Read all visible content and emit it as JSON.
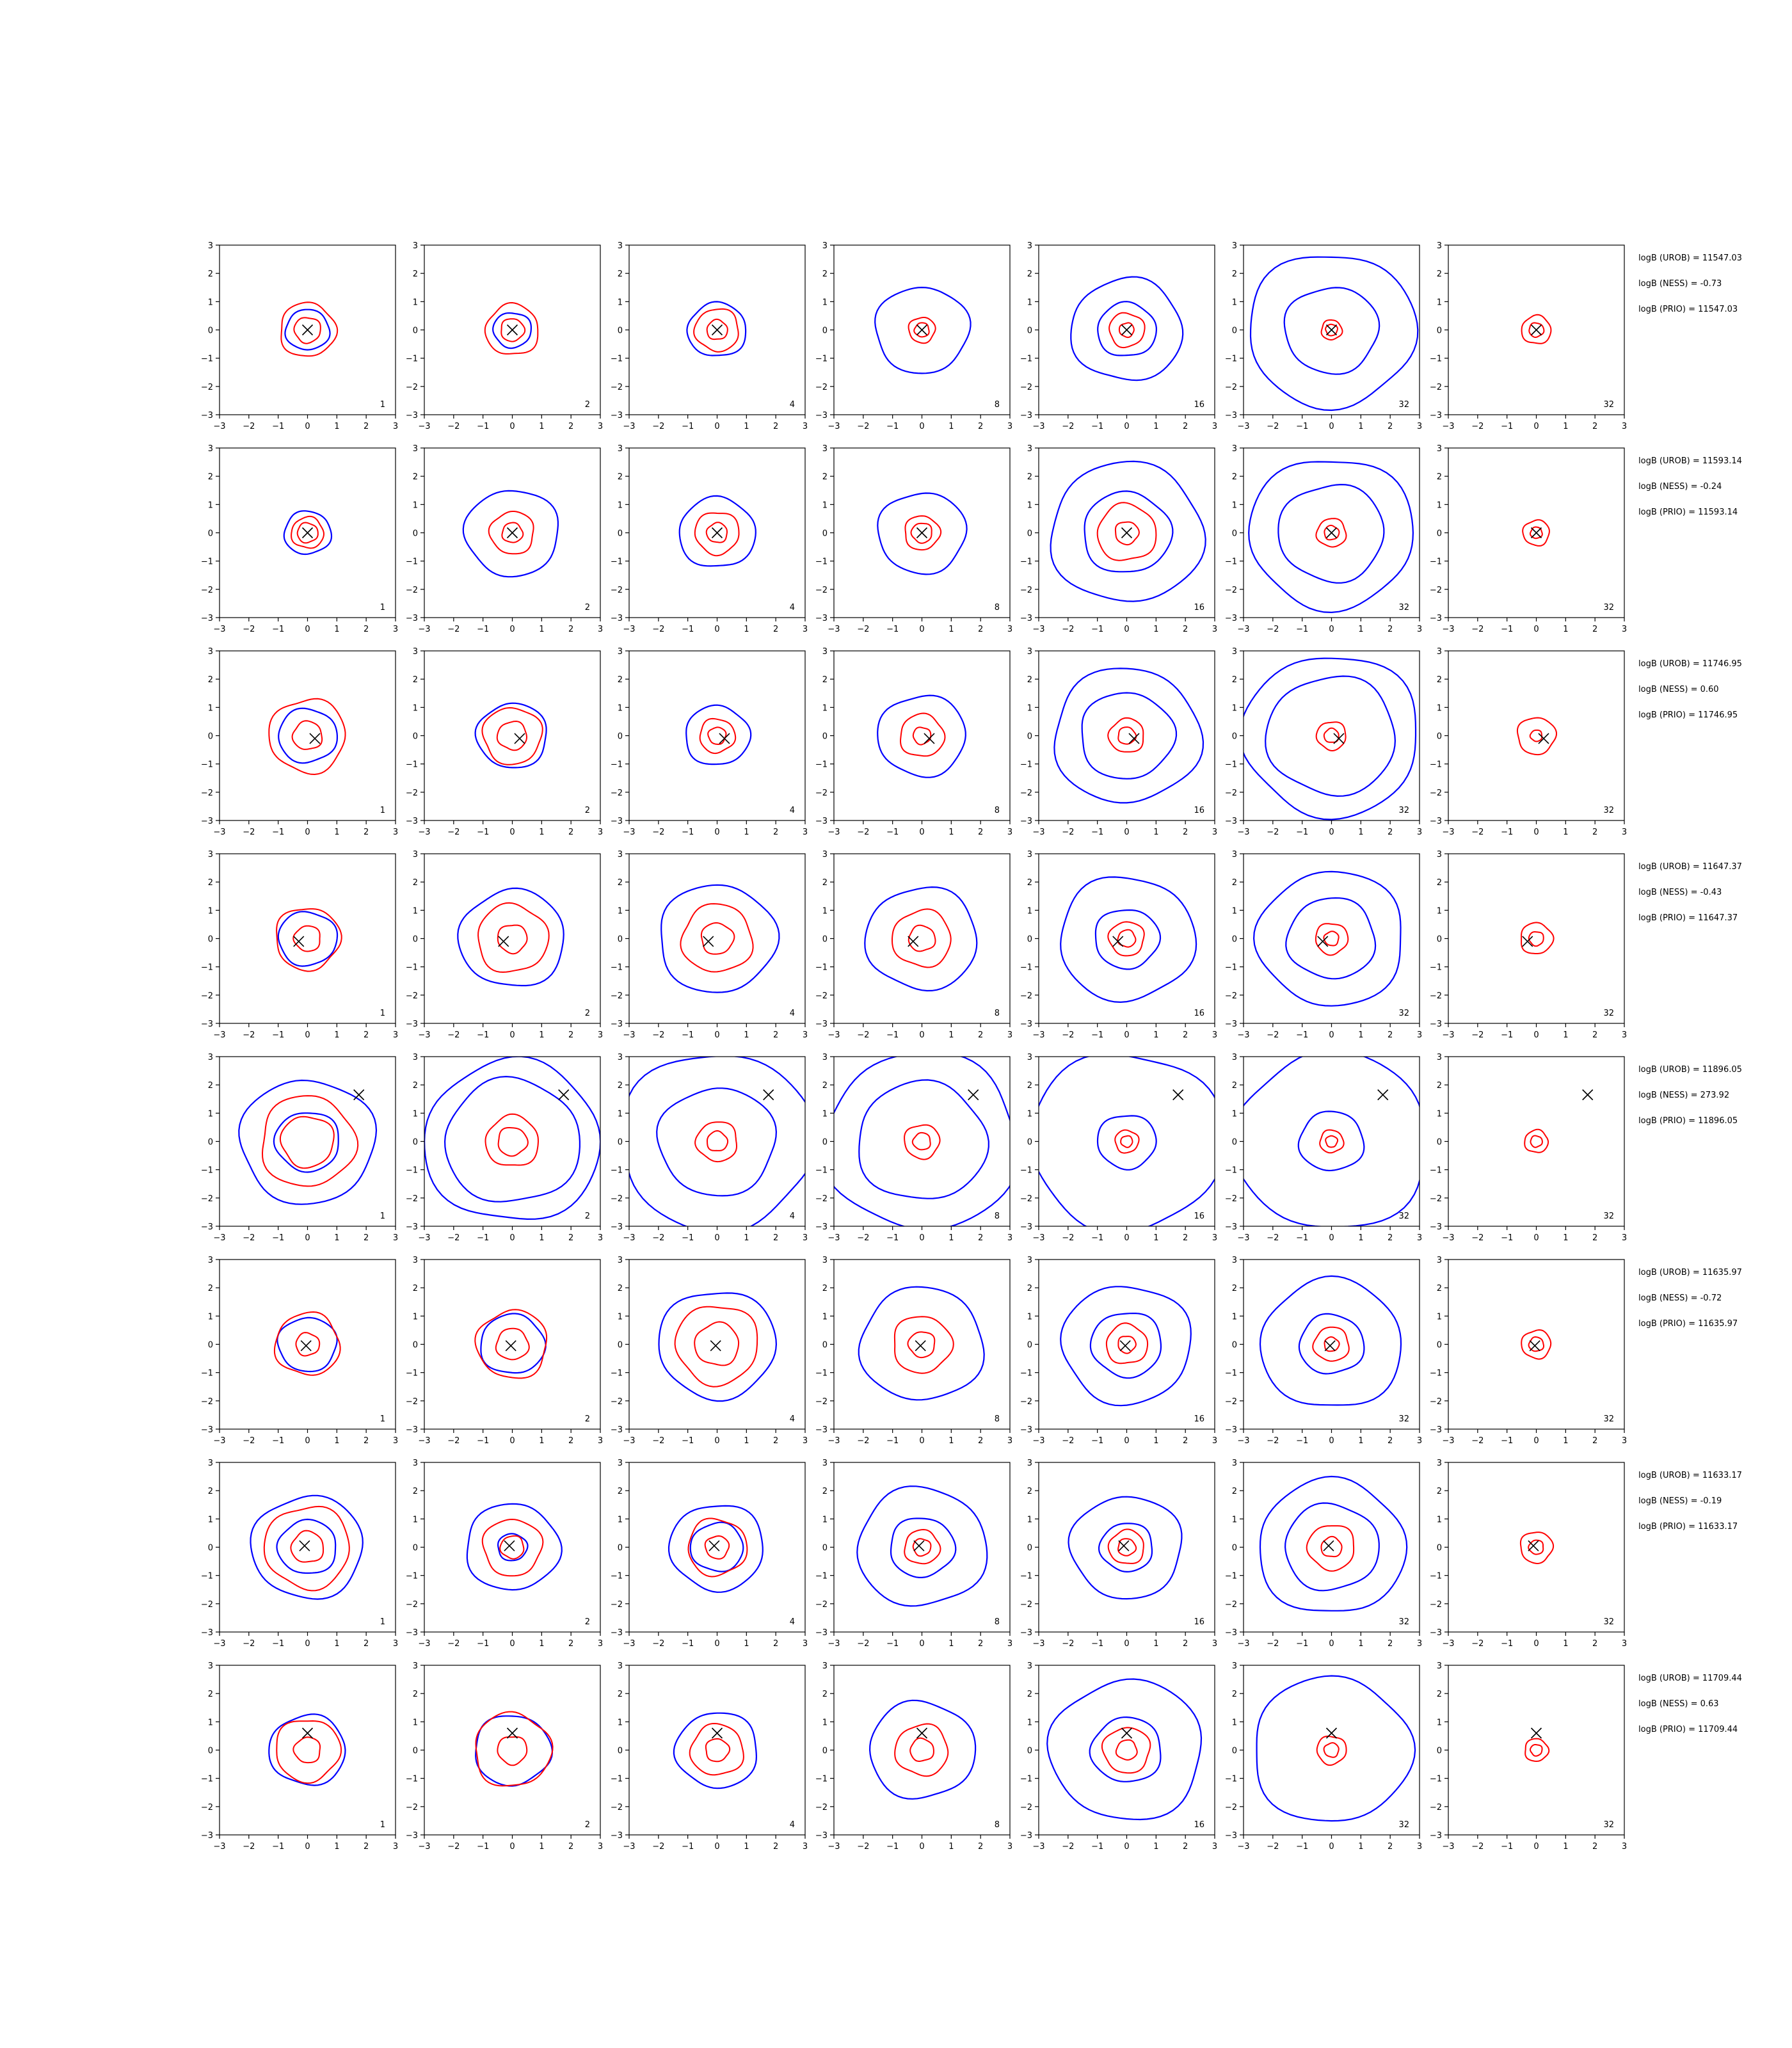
{
  "figure": {
    "rows": 8,
    "cols": 7,
    "axis_range": [
      -3,
      3
    ],
    "ticks": [
      -3,
      -2,
      -1,
      0,
      1,
      2,
      3
    ],
    "tick_labels": [
      "−3",
      "−2",
      "−1",
      "0",
      "1",
      "2",
      "3"
    ],
    "colors": {
      "outer_contours": "#0000ff",
      "inner_contours": "#ff0000",
      "marker": "#000000",
      "axes": "#000000"
    },
    "marker_symbol": "x"
  },
  "chart_data": {
    "type": "contour-grid",
    "title": "",
    "xlim": [
      -3,
      3
    ],
    "ylim": [
      -3,
      3
    ],
    "grid": false,
    "panel_labels": [
      [
        "1",
        "2",
        "4",
        "8",
        "16",
        "32",
        "32"
      ],
      [
        "1",
        "2",
        "4",
        "8",
        "16",
        "32",
        "32"
      ],
      [
        "1",
        "2",
        "4",
        "8",
        "16",
        "32",
        "32"
      ],
      [
        "1",
        "2",
        "4",
        "8",
        "16",
        "32",
        "32"
      ],
      [
        "1",
        "2",
        "4",
        "8",
        "16",
        "32",
        "32"
      ],
      [
        "1",
        "2",
        "4",
        "8",
        "16",
        "32",
        "32"
      ],
      [
        "1",
        "2",
        "4",
        "8",
        "16",
        "32",
        "32"
      ],
      [
        "1",
        "2",
        "4",
        "8",
        "16",
        "32",
        "32"
      ]
    ],
    "markers": [
      {
        "x": 0.0,
        "y": 0.0
      },
      {
        "x": 0.0,
        "y": 0.0
      },
      {
        "x": 0.25,
        "y": -0.1
      },
      {
        "x": -0.3,
        "y": -0.1
      },
      {
        "x": 1.75,
        "y": 1.65
      },
      {
        "x": -0.05,
        "y": -0.05
      },
      {
        "x": -0.1,
        "y": 0.05
      },
      {
        "x": 0.0,
        "y": 0.6
      }
    ],
    "annotations": [
      [
        "logB (UROB) = 11547.03",
        "logB (NESS) = -0.73",
        "logB (PRIO) = 11547.03"
      ],
      [
        "logB (UROB) = 11593.14",
        "logB (NESS) = -0.24",
        "logB (PRIO) = 11593.14"
      ],
      [
        "logB (UROB) = 11746.95",
        "logB (NESS) = 0.60",
        "logB (PRIO) = 11746.95"
      ],
      [
        "logB (UROB) = 11647.37",
        "logB (NESS) = -0.43",
        "logB (PRIO) = 11647.37"
      ],
      [
        "logB (UROB) = 11896.05",
        "logB (NESS) = 273.92",
        "logB (PRIO) = 11896.05"
      ],
      [
        "logB (UROB) = 11635.97",
        "logB (NESS) = -0.72",
        "logB (PRIO) = 11635.97"
      ],
      [
        "logB (UROB) = 11633.17",
        "logB (NESS) = -0.19",
        "logB (PRIO) = 11633.17"
      ],
      [
        "logB (UROB) = 11709.44",
        "logB (NESS) = 0.63",
        "logB (PRIO) = 11709.44"
      ]
    ],
    "outer_contour_radii": [
      [
        [
          0.75
        ],
        [
          0.65
        ],
        [
          1.0
        ],
        [
          1.6
        ],
        [
          1.9,
          1.0
        ],
        [
          2.85,
          1.6
        ],
        []
      ],
      [
        [
          0.8
        ],
        [
          1.6
        ],
        [
          1.3
        ],
        [
          1.5
        ],
        [
          2.6,
          1.5
        ],
        [
          2.8,
          1.8
        ],
        []
      ],
      [
        [
          1.0
        ],
        [
          1.2
        ],
        [
          1.1
        ],
        [
          1.5
        ],
        [
          2.5,
          1.6
        ],
        [
          3.0,
          2.2
        ],
        []
      ],
      [
        [
          1.0
        ],
        [
          1.8
        ],
        [
          2.0
        ],
        [
          1.9
        ],
        [
          2.3,
          1.1
        ],
        [
          2.5,
          1.5
        ],
        []
      ],
      [
        [
          2.3,
          1.1
        ],
        [
          3.0,
          2.3
        ],
        [
          3.3,
          2.0
        ],
        [
          3.3,
          2.2
        ],
        [
          3.3,
          1.0
        ],
        [
          3.3,
          1.1
        ],
        []
      ],
      [
        [
          1.0
        ],
        [
          1.1
        ],
        [
          2.0
        ],
        [
          2.1
        ],
        [
          2.2,
          1.2
        ],
        [
          2.4,
          1.1
        ],
        []
      ],
      [
        [
          1.9,
          1.0
        ],
        [
          1.6,
          0.5
        ],
        [
          1.6,
          0.9
        ],
        [
          2.2,
          1.1
        ],
        [
          1.9,
          0.9
        ],
        [
          2.5,
          1.6
        ],
        []
      ],
      [
        [
          1.3
        ],
        [
          1.3
        ],
        [
          1.4
        ],
        [
          1.8
        ],
        [
          2.6,
          1.2
        ],
        [
          2.7
        ],
        []
      ]
    ],
    "inner_contour_radii": [
      [
        [
          0.95,
          0.45
        ],
        [
          0.9,
          0.4
        ],
        [
          0.75,
          0.35
        ],
        [
          0.45,
          0.25
        ],
        [
          0.6,
          0.25
        ],
        [
          0.35,
          0.2
        ],
        [
          0.5,
          0.25
        ]
      ],
      [
        [
          0.55,
          0.35
        ],
        [
          0.75,
          0.35
        ],
        [
          0.75,
          0.35
        ],
        [
          0.6,
          0.35
        ],
        [
          1.0,
          0.4
        ],
        [
          0.5,
          0.25
        ],
        [
          0.45,
          0.2
        ]
      ],
      [
        [
          1.3,
          0.5
        ],
        [
          1.0,
          0.5
        ],
        [
          0.6,
          0.3
        ],
        [
          0.75,
          0.3
        ],
        [
          0.6,
          0.3
        ],
        [
          0.5,
          0.25
        ],
        [
          0.65,
          0.2
        ]
      ],
      [
        [
          1.1,
          0.45
        ],
        [
          1.2,
          0.5
        ],
        [
          1.2,
          0.55
        ],
        [
          1.0,
          0.45
        ],
        [
          0.6,
          0.3
        ],
        [
          0.55,
          0.25
        ],
        [
          0.55,
          0.25
        ]
      ],
      [
        [
          1.6,
          0.9
        ],
        [
          0.9,
          0.5
        ],
        [
          0.7,
          0.35
        ],
        [
          0.6,
          0.3
        ],
        [
          0.4,
          0.2
        ],
        [
          0.4,
          0.2
        ],
        [
          0.4,
          0.2
        ]
      ],
      [
        [
          1.1,
          0.4
        ],
        [
          1.2,
          0.55
        ],
        [
          1.4,
          0.75
        ],
        [
          1.0,
          0.45
        ],
        [
          0.7,
          0.3
        ],
        [
          0.6,
          0.25
        ],
        [
          0.5,
          0.25
        ]
      ],
      [
        [
          1.45,
          0.55
        ],
        [
          1.0,
          0.4
        ],
        [
          1.0,
          0.4
        ],
        [
          0.6,
          0.3
        ],
        [
          0.6,
          0.3
        ],
        [
          0.8,
          0.35
        ],
        [
          0.55,
          0.25
        ]
      ],
      [
        [
          1.1,
          0.45
        ],
        [
          1.3,
          0.5
        ],
        [
          0.9,
          0.4
        ],
        [
          0.9,
          0.4
        ],
        [
          0.8,
          0.35
        ],
        [
          0.5,
          0.25
        ],
        [
          0.4,
          0.2
        ]
      ]
    ]
  }
}
